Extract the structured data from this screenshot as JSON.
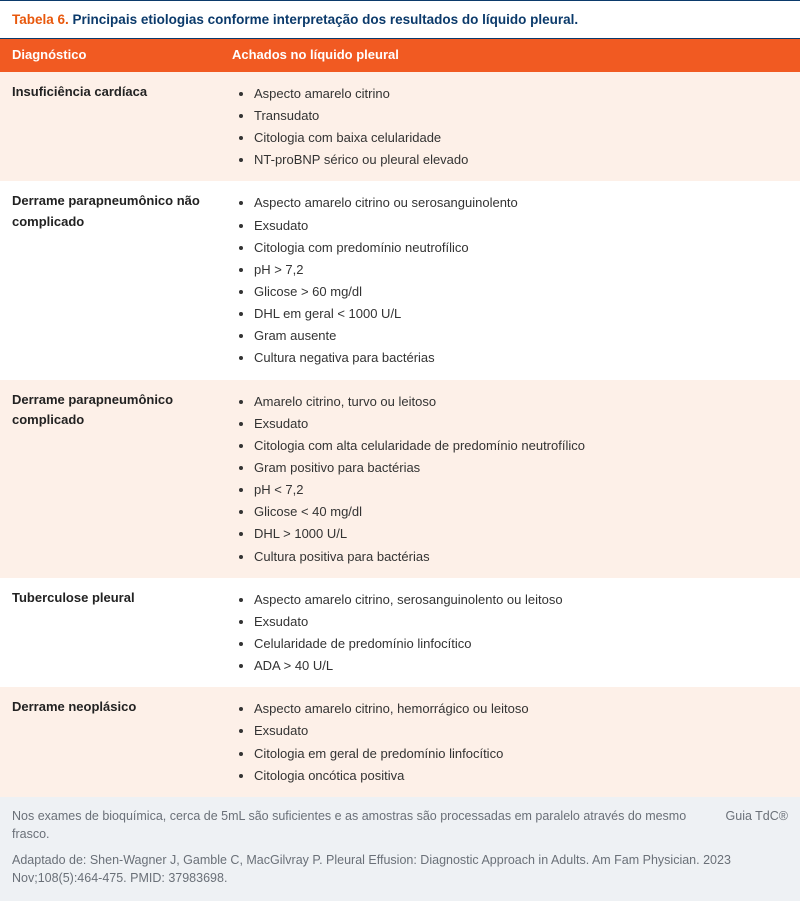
{
  "caption": {
    "number": "Tabela 6.",
    "text": "Principais etiologias conforme interpretação dos resultados do líquido pleural."
  },
  "columns": {
    "c1": "Diagnóstico",
    "c2": "Achados no líquido pleural"
  },
  "rows": [
    {
      "diag": "Insuficiência cardíaca",
      "items": [
        "Aspecto amarelo citrino",
        "Transudato",
        "Citologia com baixa celularidade",
        "NT-proBNP sérico ou pleural elevado"
      ]
    },
    {
      "diag": "Derrame parapneumônico não complicado",
      "items": [
        "Aspecto amarelo citrino ou serosanguinolento",
        "Exsudato",
        "Citologia com predomínio neutrofílico",
        "pH > 7,2",
        "Glicose > 60 mg/dl",
        "DHL em geral < 1000 U/L",
        "Gram ausente",
        "Cultura negativa para bactérias"
      ]
    },
    {
      "diag": "Derrame parapneumônico complicado",
      "items": [
        "Amarelo citrino, turvo ou leitoso",
        "Exsudato",
        "Citologia com alta celularidade de predomínio neutrofílico",
        "Gram positivo para bactérias",
        "pH < 7,2",
        "Glicose < 40 mg/dl",
        "DHL > 1000 U/L",
        "Cultura positiva para bactérias"
      ]
    },
    {
      "diag": "Tuberculose pleural",
      "items": [
        "Aspecto amarelo citrino, serosanguinolento ou leitoso",
        "Exsudato",
        "Celularidade de predomínio linfocítico",
        "ADA > 40 U/L"
      ]
    },
    {
      "diag": "Derrame neoplásico",
      "items": [
        "Aspecto amarelo citrino, hemorrágico ou leitoso",
        "Exsudato",
        "Citologia em geral de predomínio linfocítico",
        "Citologia oncótica positiva"
      ]
    }
  ],
  "footer": {
    "note": "Nos exames de bioquímica, cerca de 5mL são suficientes e as amostras são processadas em paralelo através do mesmo frasco.",
    "brand": "Guia TdC®",
    "reference": "Adaptado de: Shen-Wagner J, Gamble C, MacGilvray P. Pleural Effusion: Diagnostic Approach in Adults. Am Fam Physician. 2023 Nov;108(5):464-475. PMID: 37983698."
  },
  "colors": {
    "header_bg": "#f15a22",
    "caption_num": "#e8580c",
    "caption_txt": "#0b3a6b",
    "row_alt_bg": "#fdf0e8",
    "footer_bg": "#eef1f4",
    "footer_text": "#6a7078"
  }
}
